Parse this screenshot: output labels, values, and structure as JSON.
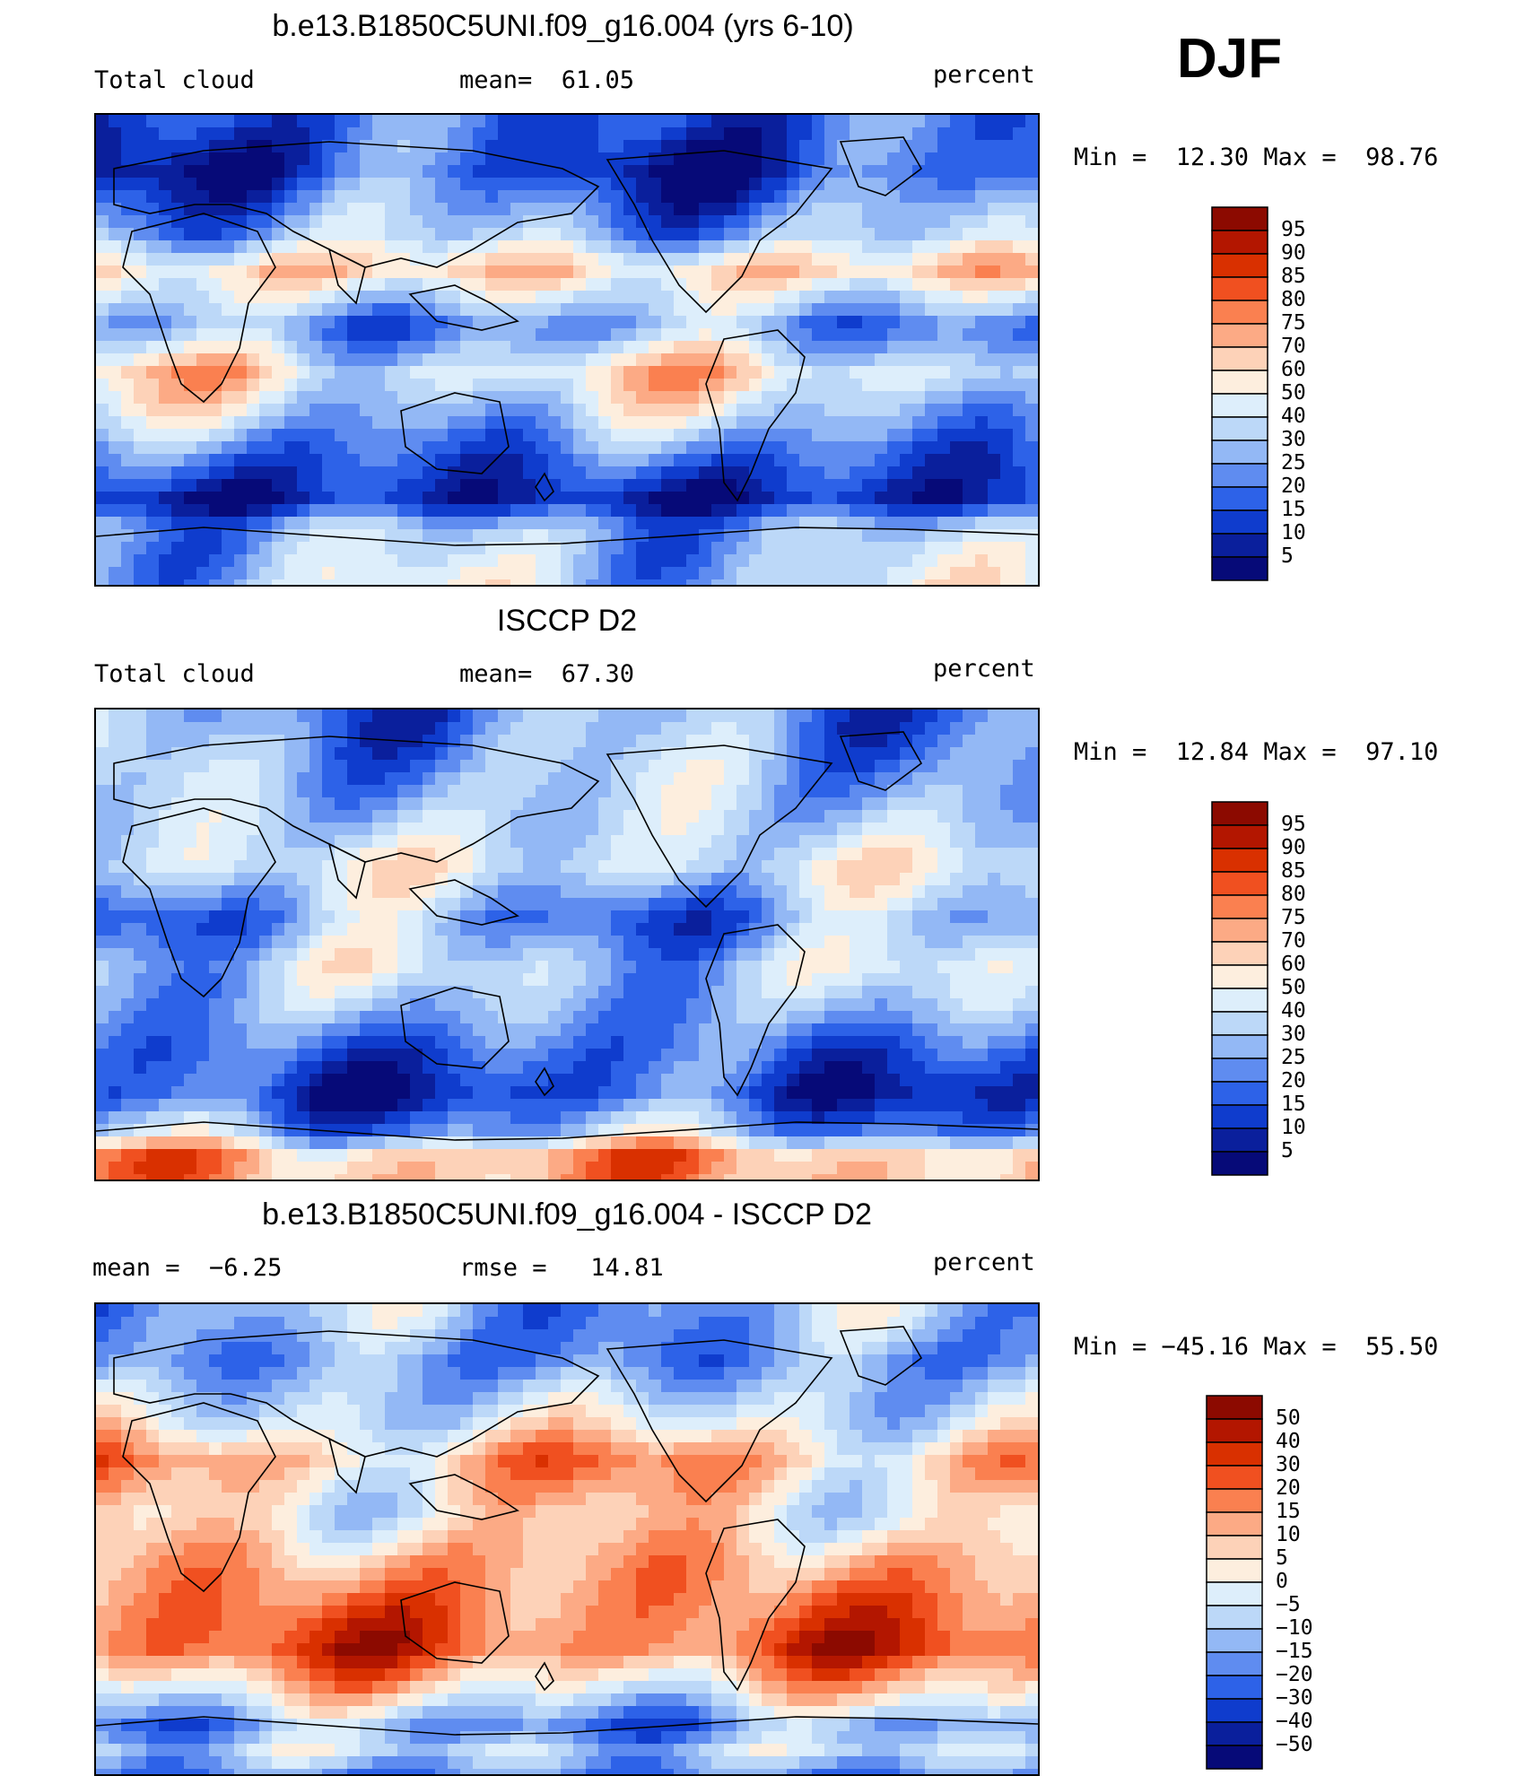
{
  "season": "DJF",
  "panels": [
    {
      "title": "b.e13.B1850C5UNI.f09_g16.004 (yrs 6-10)",
      "left_text": "Total cloud",
      "center_text": "mean=  61.05",
      "right_text": "percent",
      "minmax_text": "Min =  12.30 Max =  98.76",
      "colorbar": {
        "labels": [
          "95",
          "90",
          "85",
          "80",
          "75",
          "70",
          "60",
          "50",
          "40",
          "30",
          "25",
          "20",
          "15",
          "10",
          "5"
        ],
        "colors": [
          "#8c0a00",
          "#b31600",
          "#d93000",
          "#f05020",
          "#fa8050",
          "#fcaa85",
          "#fdd2b8",
          "#fdeede",
          "#ddeefb",
          "#bcd8f8",
          "#93b8f5",
          "#5f8cf0",
          "#2d62e8",
          "#0f3ccd",
          "#0a1f9c",
          "#060a78"
        ]
      },
      "map_style": "model"
    },
    {
      "title": "ISCCP D2",
      "left_text": "Total cloud",
      "center_text": "mean=  67.30",
      "right_text": "percent",
      "minmax_text": "Min =  12.84 Max =  97.10",
      "colorbar": {
        "labels": [
          "95",
          "90",
          "85",
          "80",
          "75",
          "70",
          "60",
          "50",
          "40",
          "30",
          "25",
          "20",
          "15",
          "10",
          "5"
        ],
        "colors": [
          "#8c0a00",
          "#b31600",
          "#d93000",
          "#f05020",
          "#fa8050",
          "#fcaa85",
          "#fdd2b8",
          "#fdeede",
          "#ddeefb",
          "#bcd8f8",
          "#93b8f5",
          "#5f8cf0",
          "#2d62e8",
          "#0f3ccd",
          "#0a1f9c",
          "#060a78"
        ]
      },
      "map_style": "obs"
    },
    {
      "title": "b.e13.B1850C5UNI.f09_g16.004 - ISCCP D2",
      "left_text": "mean =  −6.25",
      "center_text": "rmse =   14.81",
      "right_text": "percent",
      "minmax_text": "Min = −45.16 Max =  55.50",
      "colorbar": {
        "labels": [
          "50",
          "40",
          "30",
          "20",
          "15",
          "10",
          "5",
          "0",
          "−5",
          "−10",
          "−15",
          "−20",
          "−30",
          "−40",
          "−50"
        ],
        "colors": [
          "#8c0a00",
          "#b31600",
          "#d93000",
          "#f05020",
          "#fa8050",
          "#fcaa85",
          "#fdd2b8",
          "#fdeede",
          "#ddeefb",
          "#bcd8f8",
          "#93b8f5",
          "#5f8cf0",
          "#2d62e8",
          "#0f3ccd",
          "#0a1f9c",
          "#060a78"
        ]
      },
      "map_style": "diff"
    }
  ]
}
